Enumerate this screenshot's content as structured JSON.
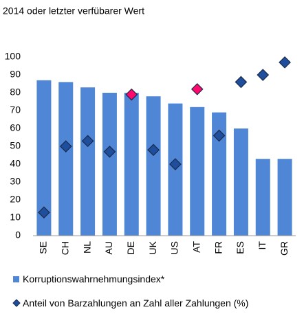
{
  "chart_data": {
    "type": "bar",
    "subtitle": "2014 oder letzter verfübarer Wert",
    "categories": [
      "SE",
      "CH",
      "NL",
      "AU",
      "DE",
      "UK",
      "US",
      "AT",
      "FR",
      "ES",
      "IT",
      "GR"
    ],
    "series": [
      {
        "name": "Korruptionswahrnehmungsindex*",
        "type": "bar",
        "color": "#4f86d6",
        "values": [
          87,
          86,
          83,
          80,
          80,
          78,
          74,
          72,
          69,
          60,
          43,
          43
        ]
      },
      {
        "name": "Anteil von Barzahlungen an Zahl aller Zahlungen (%)",
        "type": "scatter",
        "color": "#1f4e9c",
        "point_colors": [
          "#1f4e9c",
          "#1f4e9c",
          "#1f4e9c",
          "#1f4e9c",
          "#ff0a6c",
          "#1f4e9c",
          "#1f4e9c",
          "#ff0a6c",
          "#1f4e9c",
          "#1f4e9c",
          "#1f4e9c",
          "#1f4e9c"
        ],
        "values": [
          13,
          50,
          53,
          47,
          79,
          48,
          40,
          82,
          56,
          86,
          90,
          97
        ]
      }
    ],
    "ylim": [
      0,
      100
    ],
    "yticks": [
      0,
      10,
      20,
      30,
      40,
      50,
      60,
      70,
      80,
      90,
      100
    ],
    "grid": false
  }
}
